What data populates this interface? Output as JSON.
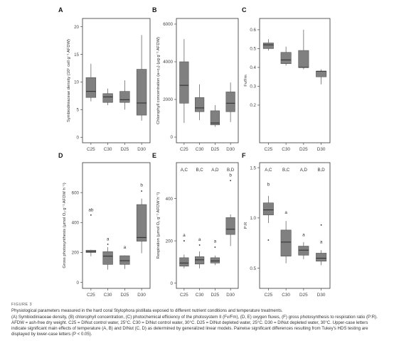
{
  "figure": {
    "label": "FIGURE 3",
    "caption_title": "Physiological parameters measured in the hard coral Stylophora pistillata exposed to different nutrient conditions and temperature treatments.",
    "caption_body": "(A) Symbiodiniaceae density, (B) chlorophyll concentration, (C) photochemical efficiency of the photosystem II (Fv/Fm), (D, E) oxygen fluxes, (F) gross photosynthesis to respiration ratio (P:R). AFDW = ash-free dry weight. C25 = DINut control water, 25°C. C30 = DINut control water, 30°C. D25 = DINut depleted water, 25°C. D30 = DINut depleted water, 30°C. Upper-case letters indicate significant main effects of temperature (A, B) and DINut (C, D) as determined by generalized linear models. Pairwise significant differences resulting from Tukey's HDS testing are displayed by lower-case letters (P < 0.05)."
  },
  "colors": {
    "box_fill": "#808080",
    "box_stroke": "#555555",
    "panel_border": "#333333"
  },
  "chart_data": [
    {
      "id": "A",
      "type": "box",
      "panel_label": "A",
      "ylabel": "Symbiodiniaceae density (10⁶ cell g⁻¹ AFDW)",
      "ylim": [
        -1,
        21.5
      ],
      "yticks": [
        0,
        5,
        10,
        15,
        20
      ],
      "categories": [
        "C25",
        "C30",
        "D25",
        "D30"
      ],
      "boxes": [
        {
          "min": 6.5,
          "q1": 7.2,
          "median": 8.3,
          "q3": 10.8,
          "max": 13.3
        },
        {
          "min": 5.8,
          "q1": 6.3,
          "median": 7.3,
          "q3": 7.9,
          "max": 8.8
        },
        {
          "min": 5.0,
          "q1": 6.3,
          "median": 6.8,
          "q3": 8.3,
          "max": 10.3
        },
        {
          "min": 3.0,
          "q1": 4.0,
          "median": 6.2,
          "q3": 12.3,
          "max": 18.5
        }
      ],
      "outliers": [],
      "group_letters": [],
      "letters": []
    },
    {
      "id": "B",
      "type": "box",
      "panel_label": "B",
      "ylabel": "Chlorophyll concentration (a+c₂) (µg g⁻¹ AFDW)",
      "ylim": [
        -300,
        6300
      ],
      "yticks": [
        0,
        2000,
        4000,
        6000
      ],
      "categories": [
        "C25",
        "C30",
        "D25",
        "D30"
      ],
      "boxes": [
        {
          "min": 750,
          "q1": 1800,
          "median": 2750,
          "q3": 4000,
          "max": 5200
        },
        {
          "min": 900,
          "q1": 1350,
          "median": 1550,
          "q3": 2100,
          "max": 2800
        },
        {
          "min": 550,
          "q1": 650,
          "median": 750,
          "q3": 1400,
          "max": 1700
        },
        {
          "min": 800,
          "q1": 1350,
          "median": 1800,
          "q3": 2400,
          "max": 2900
        }
      ],
      "outliers": [],
      "group_letters": [],
      "letters": []
    },
    {
      "id": "C",
      "type": "box",
      "panel_label": "C",
      "ylabel": "Fv/Fm",
      "ylim": [
        0,
        0.66
      ],
      "yticks": [
        0.2,
        0.3,
        0.4,
        0.5,
        0.6
      ],
      "categories": [
        "C25",
        "C30",
        "D25",
        "D30"
      ],
      "boxes": [
        {
          "min": 0.49,
          "q1": 0.5,
          "median": 0.52,
          "q3": 0.53,
          "max": 0.55
        },
        {
          "min": 0.41,
          "q1": 0.42,
          "median": 0.44,
          "q3": 0.48,
          "max": 0.51
        },
        {
          "min": 0.39,
          "q1": 0.4,
          "median": 0.4,
          "q3": 0.49,
          "max": 0.6
        },
        {
          "min": 0.31,
          "q1": 0.35,
          "median": 0.38,
          "q3": 0.38,
          "max": 0.39
        }
      ],
      "outliers": [],
      "group_letters": [],
      "letters": []
    },
    {
      "id": "D",
      "type": "box",
      "panel_label": "D",
      "ylabel": "Gross photosynthesis (µmol O₂ g⁻¹ AFDW h⁻¹)",
      "ylim": [
        -40,
        800
      ],
      "yticks": [
        0,
        200,
        400,
        600
      ],
      "categories": [
        "C25",
        "C30",
        "D25",
        "D30"
      ],
      "boxes": [
        {
          "min": 175,
          "q1": 200,
          "median": 205,
          "q3": 215,
          "max": 218
        },
        {
          "min": 85,
          "q1": 120,
          "median": 175,
          "q3": 205,
          "max": 235
        },
        {
          "min": 90,
          "q1": 120,
          "median": 145,
          "q3": 178,
          "max": 180
        },
        {
          "min": 195,
          "q1": 275,
          "median": 300,
          "q3": 520,
          "max": 560
        }
      ],
      "outliers": [
        {
          "box": 0,
          "value": 450
        },
        {
          "box": 1,
          "value": 255
        },
        {
          "box": 3,
          "value": 610
        }
      ],
      "group_letters": [],
      "letters": [
        {
          "box": 0,
          "text": "ab",
          "value": 475
        },
        {
          "box": 1,
          "text": "a",
          "value": 280
        },
        {
          "box": 2,
          "text": "a",
          "value": 225
        },
        {
          "box": 3,
          "text": "b",
          "value": 640
        }
      ]
    },
    {
      "id": "E",
      "type": "box",
      "panel_label": "E",
      "ylabel": "Respiration (µmol O₂ g⁻¹ AFDW h⁻¹)",
      "ylim": [
        -25,
        570
      ],
      "yticks": [
        0,
        200,
        400
      ],
      "categories": [
        "C25",
        "C30",
        "D25",
        "D30"
      ],
      "boxes": [
        {
          "min": 70,
          "q1": 80,
          "median": 95,
          "q3": 120,
          "max": 135
        },
        {
          "min": 70,
          "q1": 90,
          "median": 110,
          "q3": 125,
          "max": 150
        },
        {
          "min": 85,
          "q1": 95,
          "median": 105,
          "q3": 120,
          "max": 130
        },
        {
          "min": 175,
          "q1": 230,
          "median": 255,
          "q3": 310,
          "max": 325
        }
      ],
      "outliers": [
        {
          "box": 0,
          "value": 200
        },
        {
          "box": 1,
          "value": 180
        },
        {
          "box": 2,
          "value": 170
        },
        {
          "box": 3,
          "value": 485
        }
      ],
      "group_letters": [
        "A,C",
        "B,C",
        "A,D",
        "B,D"
      ],
      "letters": [
        {
          "box": 0,
          "text": "a",
          "value": 220
        },
        {
          "box": 1,
          "text": "a",
          "value": 200
        },
        {
          "box": 2,
          "text": "a",
          "value": 192
        },
        {
          "box": 3,
          "text": "b",
          "value": 505
        }
      ]
    },
    {
      "id": "F",
      "type": "box",
      "panel_label": "F",
      "ylabel": "P:R",
      "ylim": [
        0.3,
        1.55
      ],
      "yticks": [
        0.5,
        1.0,
        1.5
      ],
      "categories": [
        "C25",
        "C30",
        "D25",
        "D30"
      ],
      "boxes": [
        {
          "min": 0.95,
          "q1": 1.03,
          "median": 1.08,
          "q3": 1.15,
          "max": 1.22
        },
        {
          "min": 0.55,
          "q1": 0.62,
          "median": 0.76,
          "q3": 0.88,
          "max": 0.97
        },
        {
          "min": 0.59,
          "q1": 0.63,
          "median": 0.68,
          "q3": 0.72,
          "max": 0.76
        },
        {
          "min": 0.53,
          "q1": 0.57,
          "median": 0.6,
          "q3": 0.65,
          "max": 0.68
        }
      ],
      "outliers": [
        {
          "box": 0,
          "value": 0.78
        },
        {
          "box": 3,
          "value": 0.93
        }
      ],
      "group_letters": [
        "A,C",
        "B,C",
        "A,D",
        "B,D"
      ],
      "letters": [
        {
          "box": 0,
          "text": "b",
          "value": 1.32
        },
        {
          "box": 1,
          "text": "a",
          "value": 1.04
        },
        {
          "box": 2,
          "text": "a",
          "value": 0.82
        },
        {
          "box": 3,
          "text": "a",
          "value": 0.75
        }
      ]
    }
  ]
}
